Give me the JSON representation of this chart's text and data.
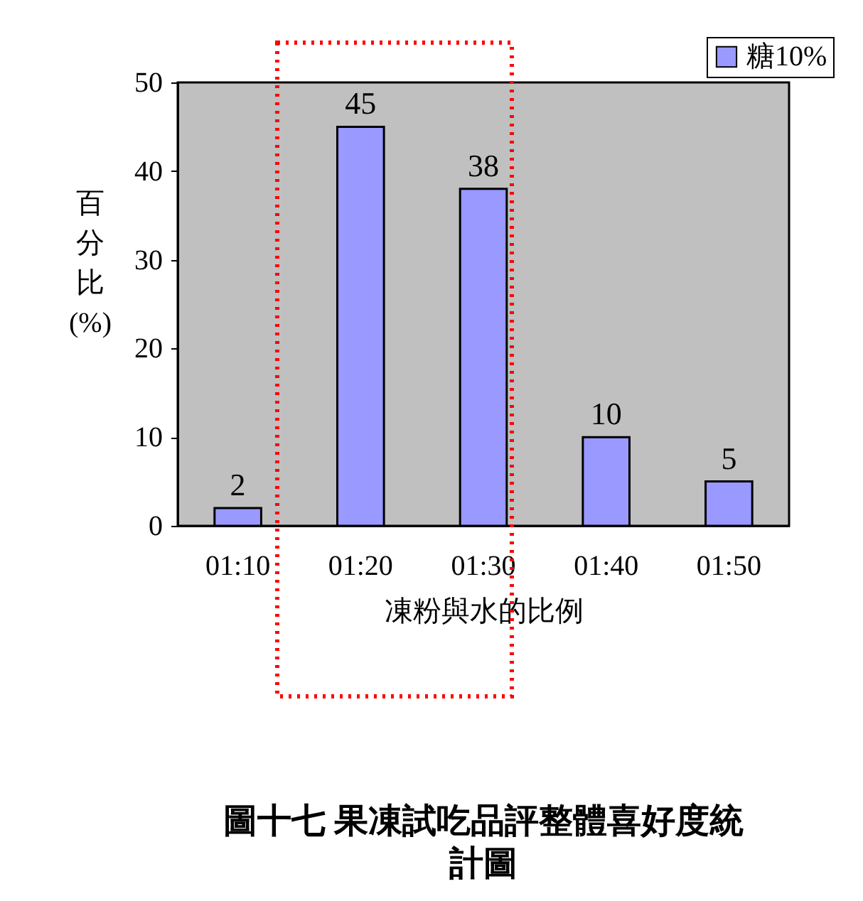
{
  "chart_data": {
    "type": "bar",
    "title": "圖十七  果凍試吃品評整體喜好度統計圖",
    "xlabel": "凍粉與水的比例",
    "ylabel": "百分比(%)",
    "categories": [
      "01:10",
      "01:20",
      "01:30",
      "01:40",
      "01:50"
    ],
    "series": [
      {
        "name": "糖10%",
        "color": "#9999ff",
        "values": [
          2,
          45,
          38,
          10,
          5
        ]
      }
    ],
    "ylim": [
      0,
      50
    ],
    "yticks": [
      0,
      10,
      20,
      30,
      40,
      50
    ],
    "grid": false,
    "legend": "top right",
    "data_labels": true
  }
}
